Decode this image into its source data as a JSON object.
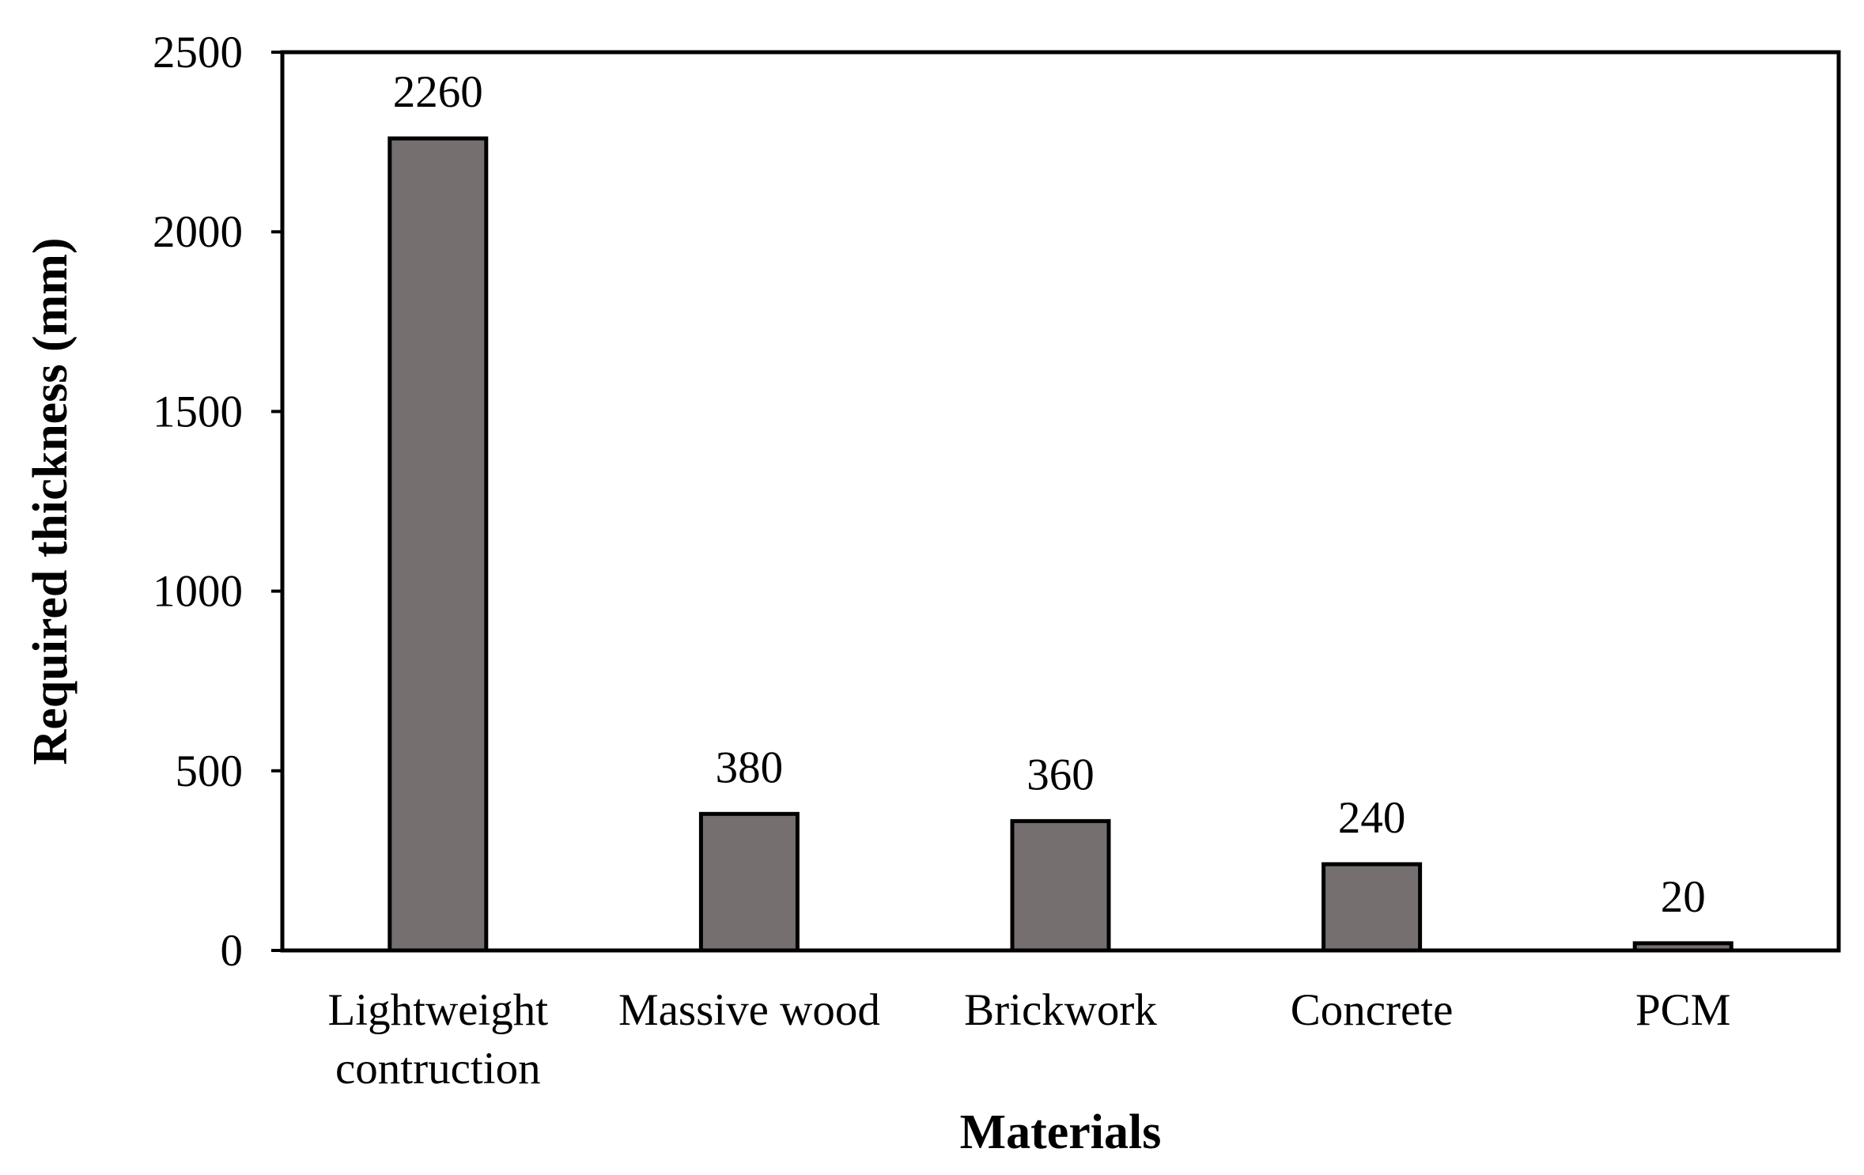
{
  "chart_data": {
    "type": "bar",
    "categories": [
      [
        "Lightweight",
        "contruction"
      ],
      [
        "Massive wood"
      ],
      [
        "Brickwork"
      ],
      [
        "Concrete"
      ],
      [
        "PCM"
      ]
    ],
    "values": [
      2260,
      380,
      360,
      240,
      20
    ],
    "data_labels": [
      "2260",
      "380",
      "360",
      "240",
      "20"
    ],
    "title": "",
    "xlabel": "Materials",
    "ylabel": "Required  thickness (mm)",
    "ylim": [
      0,
      2500
    ],
    "yticks": [
      0,
      500,
      1000,
      1500,
      2000,
      2500
    ],
    "ytick_labels": [
      "0",
      "500",
      "1000",
      "1500",
      "2000",
      "2500"
    ],
    "grid": false,
    "legend": "none",
    "colors": {
      "bar_fill": "#756f6f",
      "bar_stroke": "#000000",
      "axis": "#000000"
    }
  }
}
